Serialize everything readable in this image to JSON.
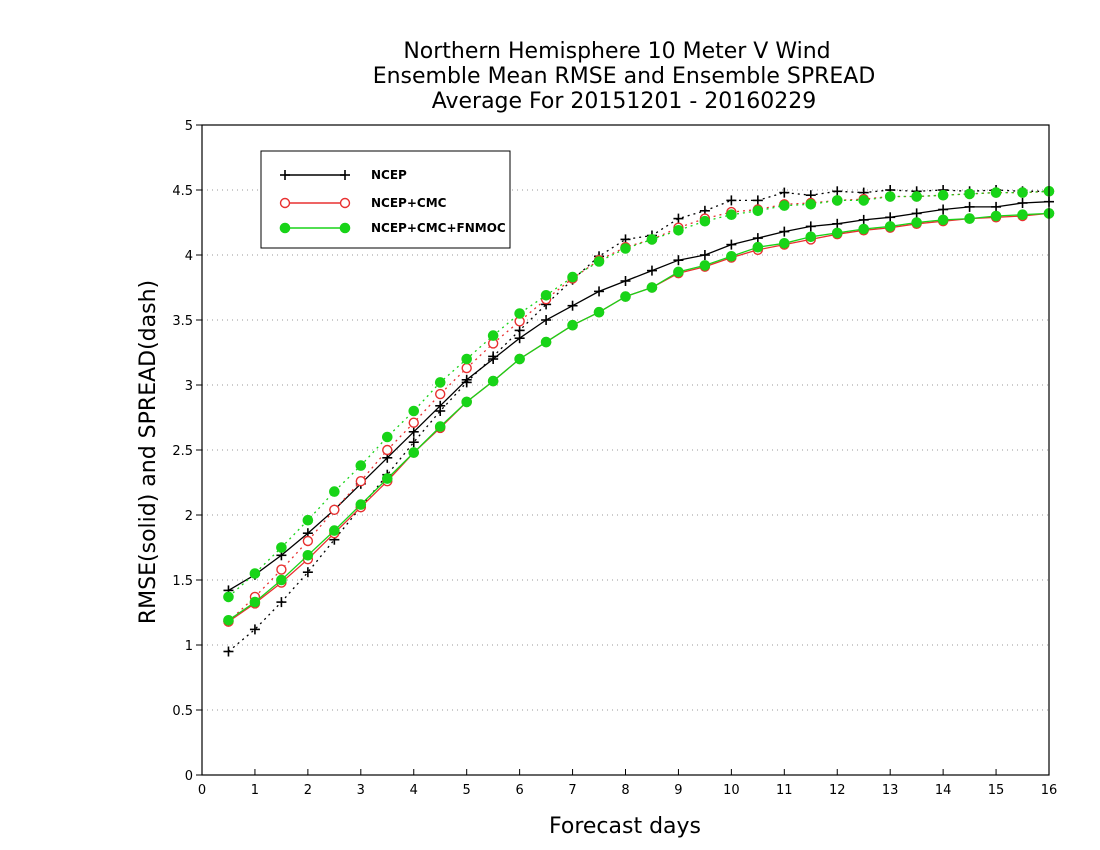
{
  "title": {
    "line1": "Northern Hemisphere 10 Meter V Wind",
    "line2": "Ensemble Mean RMSE and Ensemble SPREAD",
    "line3": "Average For 20151201 - 20160229"
  },
  "colors": {
    "ncep": "#000000",
    "ncep_cmc": "#e83030",
    "ncep_cmc_fnmoc": "#18d418",
    "grid": "#999999"
  },
  "chart_data": {
    "type": "line",
    "xlabel": "Forecast days",
    "ylabel": "RMSE(solid) and SPREAD(dash)",
    "xlim": [
      0,
      16
    ],
    "ylim": [
      0,
      5
    ],
    "xticks": [
      "0",
      "1",
      "2",
      "3",
      "4",
      "5",
      "6",
      "7",
      "8",
      "9",
      "10",
      "11",
      "12",
      "13",
      "14",
      "15",
      "16"
    ],
    "yticks": [
      "0",
      "0.5",
      "1",
      "1.5",
      "2",
      "2.5",
      "3",
      "3.5",
      "4",
      "4.5",
      "5"
    ],
    "grid": "horizontal dotted",
    "legend_position": "top-left",
    "x": [
      0.5,
      1,
      1.5,
      2,
      2.5,
      3,
      3.5,
      4,
      4.5,
      5,
      5.5,
      6,
      6.5,
      7,
      7.5,
      8,
      8.5,
      9,
      9.5,
      10,
      10.5,
      11,
      11.5,
      12,
      12.5,
      13,
      13.5,
      14,
      14.5,
      15,
      15.5,
      16
    ],
    "series": [
      {
        "name": "NCEP",
        "marker": "plus",
        "rmse": [
          1.42,
          1.54,
          1.69,
          1.86,
          2.04,
          2.24,
          2.44,
          2.64,
          2.84,
          3.04,
          3.2,
          3.36,
          3.5,
          3.61,
          3.72,
          3.8,
          3.88,
          3.96,
          4.0,
          4.08,
          4.13,
          4.18,
          4.22,
          4.24,
          4.27,
          4.29,
          4.32,
          4.35,
          4.37,
          4.37,
          4.4,
          4.41
        ],
        "spread": [
          0.95,
          1.12,
          1.33,
          1.56,
          1.81,
          2.06,
          2.31,
          2.56,
          2.8,
          3.02,
          3.22,
          3.42,
          3.62,
          3.81,
          3.99,
          4.12,
          4.15,
          4.28,
          4.34,
          4.42,
          4.42,
          4.48,
          4.46,
          4.49,
          4.48,
          4.5,
          4.49,
          4.5,
          4.49,
          4.5,
          4.49,
          4.49
        ]
      },
      {
        "name": "NCEP+CMC",
        "marker": "open-circle",
        "rmse": [
          1.18,
          1.32,
          1.48,
          1.66,
          1.86,
          2.06,
          2.26,
          2.48,
          2.67,
          2.87,
          3.03,
          3.2,
          3.33,
          3.46,
          3.56,
          3.68,
          3.75,
          3.86,
          3.91,
          3.98,
          4.04,
          4.08,
          4.12,
          4.16,
          4.19,
          4.21,
          4.24,
          4.26,
          4.28,
          4.29,
          4.3,
          4.32
        ],
        "spread": [
          1.18,
          1.37,
          1.58,
          1.8,
          2.04,
          2.26,
          2.5,
          2.71,
          2.93,
          3.13,
          3.32,
          3.49,
          3.66,
          3.82,
          3.96,
          4.06,
          4.12,
          4.21,
          4.28,
          4.33,
          4.35,
          4.39,
          4.4,
          4.42,
          4.43,
          4.45,
          4.45,
          4.46,
          4.47,
          4.48,
          4.48,
          4.49
        ]
      },
      {
        "name": "NCEP+CMC+FNMOC",
        "marker": "filled-circle",
        "rmse": [
          1.19,
          1.33,
          1.5,
          1.69,
          1.88,
          2.08,
          2.28,
          2.48,
          2.68,
          2.87,
          3.03,
          3.2,
          3.33,
          3.46,
          3.56,
          3.68,
          3.75,
          3.87,
          3.92,
          3.99,
          4.06,
          4.09,
          4.14,
          4.17,
          4.2,
          4.22,
          4.25,
          4.27,
          4.28,
          4.3,
          4.31,
          4.32
        ],
        "spread": [
          1.37,
          1.55,
          1.75,
          1.96,
          2.18,
          2.38,
          2.6,
          2.8,
          3.02,
          3.2,
          3.38,
          3.55,
          3.69,
          3.83,
          3.95,
          4.05,
          4.12,
          4.19,
          4.26,
          4.31,
          4.34,
          4.38,
          4.39,
          4.42,
          4.42,
          4.45,
          4.45,
          4.46,
          4.47,
          4.48,
          4.48,
          4.49
        ]
      }
    ]
  }
}
